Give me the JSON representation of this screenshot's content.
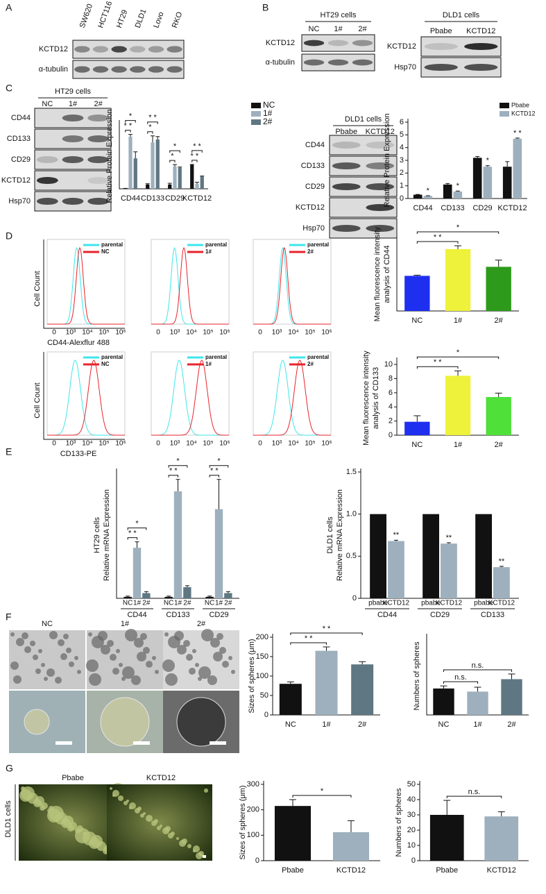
{
  "panel_labels": [
    "A",
    "B",
    "C",
    "D",
    "E",
    "F",
    "G"
  ],
  "blots": {
    "a": {
      "lanes": [
        "SW620",
        "HCT116",
        "HT29",
        "DLD1",
        "Lovo",
        "RKO"
      ],
      "rows": [
        "KCTD12",
        "α-tubulin"
      ]
    },
    "b1": {
      "title": "HT29 cells",
      "lanes": [
        "NC",
        "1#",
        "2#"
      ],
      "rows": [
        "KCTD12",
        "α-tubulin"
      ]
    },
    "b2": {
      "title": "DLD1   cells",
      "lanes": [
        "Pbabe",
        "KCTD12"
      ],
      "rows": [
        "KCTD12",
        "Hsp70"
      ]
    },
    "c1": {
      "title": "HT29 cells",
      "lanes": [
        "NC",
        "1#",
        "2#"
      ],
      "rows": [
        "CD44",
        "CD133",
        "CD29",
        "KCTD12",
        "Hsp70"
      ]
    },
    "c2": {
      "title": "DLD1 cells",
      "lanes": [
        "Pbabe",
        "KCTD12"
      ],
      "rows": [
        "CD44",
        "CD133",
        "CD29",
        "KCTD12",
        "Hsp70"
      ]
    }
  },
  "flow": {
    "ylabel": "Cell Count",
    "xticks": [
      "0",
      "10³",
      "10⁴",
      "10⁵",
      "10⁶"
    ],
    "rows": [
      {
        "xlabel": "CD44-Alexflur 488",
        "plots": [
          [
            "parental",
            "NC"
          ],
          [
            "parental",
            "1#"
          ],
          [
            "parental",
            "2#"
          ]
        ]
      },
      {
        "xlabel": "CD133-PE",
        "plots": [
          [
            "parental",
            "NC"
          ],
          [
            "parental",
            "1#"
          ],
          [
            "parental",
            "2#"
          ]
        ]
      }
    ]
  },
  "spheres": {
    "f": {
      "labels": [
        "NC",
        "1#",
        "2#"
      ]
    },
    "g": {
      "labels": [
        "Pbabe",
        "KCTD12"
      ],
      "side": "DLD1 cells"
    }
  },
  "chart_data": [
    {
      "type": "bar",
      "ylabel": [
        "Relative Protein Expression"
      ],
      "categories": [
        "CD44",
        "CD133",
        "CD29",
        "KCTD12"
      ],
      "series": [
        {
          "name": "NC",
          "color": "#111111",
          "values": [
            0.02,
            0.3,
            0.3,
            1.65
          ],
          "errors": [
            0.01,
            0.05,
            0.08,
            0.03
          ]
        },
        {
          "name": "1#",
          "color": "#9eb0bd",
          "values": [
            3.6,
            3.2,
            1.55,
            0.35
          ],
          "errors": [
            0.15,
            0.45,
            0.12,
            0.1
          ]
        },
        {
          "name": "2#",
          "color": "#5f7782",
          "values": [
            2.1,
            3.4,
            1.45,
            0.85
          ],
          "errors": [
            0.45,
            0.2,
            0.05,
            0.03
          ]
        }
      ],
      "ylim": [
        0,
        4.5
      ],
      "legend": "right",
      "annotations": [
        {
          "category": 0,
          "from": 0,
          "to": 1,
          "label": "* *"
        },
        {
          "category": 0,
          "from": 0,
          "to": 2,
          "label": "*"
        },
        {
          "category": 1,
          "from": 0,
          "to": 1,
          "label": "*"
        },
        {
          "category": 1,
          "from": 0,
          "to": 2,
          "label": "* *"
        },
        {
          "category": 2,
          "from": 0,
          "to": 1,
          "label": "*"
        },
        {
          "category": 2,
          "from": 0,
          "to": 2,
          "label": "*"
        },
        {
          "category": 3,
          "from": 0,
          "to": 1,
          "label": "* *"
        },
        {
          "category": 3,
          "from": 0,
          "to": 2,
          "label": "* *"
        }
      ]
    },
    {
      "type": "bar",
      "ylabel": [
        "Relative Protein Expression"
      ],
      "categories": [
        "CD44",
        "CD133",
        "CD29",
        "KCTD12"
      ],
      "series": [
        {
          "name": "Pbabe",
          "color": "#111111",
          "values": [
            0.3,
            1.1,
            3.2,
            2.5
          ],
          "errors": [
            0.02,
            0.08,
            0.1,
            0.4
          ]
        },
        {
          "name": "KCTD12",
          "color": "#9eb0bd",
          "values": [
            0.2,
            0.55,
            2.5,
            4.7
          ],
          "errors": [
            0.02,
            0.04,
            0.08,
            0.05
          ]
        }
      ],
      "ylim": [
        0,
        6
      ],
      "yticks": [
        0,
        1,
        2,
        3,
        4,
        5,
        6
      ],
      "legend": "top-right",
      "annotations": [
        {
          "category": 0,
          "series": 1,
          "label": "*"
        },
        {
          "category": 1,
          "series": 1,
          "label": "*"
        },
        {
          "category": 2,
          "series": 1,
          "label": "*"
        },
        {
          "category": 3,
          "series": 1,
          "label": "* *"
        }
      ]
    },
    {
      "type": "bar",
      "ylabel": [
        "Mean  fluorescence  intensity",
        "analysis of CD44"
      ],
      "categories": [
        "NC",
        "1#",
        "2#"
      ],
      "values": [
        1.05,
        1.85,
        1.32
      ],
      "errors": [
        0.02,
        0.1,
        0.2
      ],
      "colors": [
        "#1f2ff0",
        "#eef23a",
        "#2e9a1c"
      ],
      "ylim": [
        0,
        2.2
      ],
      "annotations": [
        {
          "from": 0,
          "to": 1,
          "label": "* *"
        },
        {
          "from": 0,
          "to": 2,
          "label": "*"
        }
      ]
    },
    {
      "type": "bar",
      "ylabel": [
        "Mean  fluorescence  intensity",
        "analysis of CD133"
      ],
      "categories": [
        "NC",
        "1#",
        "2#"
      ],
      "values": [
        1.9,
        8.4,
        5.4
      ],
      "errors": [
        0.85,
        0.7,
        0.55
      ],
      "colors": [
        "#1f2ff0",
        "#eef23a",
        "#4fe03a"
      ],
      "ylim": [
        0,
        10.5
      ],
      "yticks": [
        0,
        2,
        4,
        6,
        8,
        10
      ],
      "annotations": [
        {
          "from": 0,
          "to": 1,
          "label": "* *"
        },
        {
          "from": 0,
          "to": 2,
          "label": "*"
        }
      ]
    },
    {
      "type": "bar",
      "ylabel": [
        "HT29 cells",
        "Relative mRNA  Expression"
      ],
      "categories": [
        "CD44",
        "CD133",
        "CD29"
      ],
      "series": [
        {
          "name": "NC",
          "color": "#111111",
          "values": [
            1,
            1,
            1
          ],
          "errors": [
            0.5,
            0.5,
            0.5
          ]
        },
        {
          "name": "1#",
          "color": "#9eb0bd",
          "values": [
            34,
            72,
            60
          ],
          "errors": [
            4,
            8,
            20
          ]
        },
        {
          "name": "2#",
          "color": "#5f7782",
          "values": [
            3.5,
            7.5,
            3.5
          ],
          "errors": [
            1,
            1,
            1
          ]
        }
      ],
      "ylim": [
        0,
        85
      ],
      "legend": "under",
      "annotations": [
        {
          "category": 0,
          "from": 0,
          "to": 1,
          "label": "* *"
        },
        {
          "category": 0,
          "from": 0,
          "to": 2,
          "label": "*"
        },
        {
          "category": 1,
          "from": 0,
          "to": 1,
          "label": "* *"
        },
        {
          "category": 1,
          "from": 0,
          "to": 2,
          "label": "*"
        },
        {
          "category": 2,
          "from": 0,
          "to": 1,
          "label": "* *"
        },
        {
          "category": 2,
          "from": 0,
          "to": 2,
          "label": "*"
        }
      ]
    },
    {
      "type": "bar",
      "ylabel": [
        "DLD1 cells",
        "Relative mRNA  Expression"
      ],
      "categories": [
        "CD44",
        "CD29",
        "CD133"
      ],
      "series": [
        {
          "name": "pbabe",
          "color": "#111111",
          "values": [
            1,
            1,
            1
          ]
        },
        {
          "name": "KCTD12",
          "color": "#9eb0bd",
          "values": [
            0.68,
            0.65,
            0.37
          ],
          "errors": [
            0.01,
            0.01,
            0.01
          ]
        }
      ],
      "ylim": [
        0,
        1.5
      ],
      "yticks": [
        0,
        {
          "value": 0.5,
          "label": "0.5"
        },
        {
          "value": 1,
          "label": "1.0"
        },
        {
          "value": 1.5,
          "label": "1.5"
        }
      ],
      "legend": "under",
      "annotations": [
        {
          "category": 0,
          "series": 1,
          "label": "**"
        },
        {
          "category": 1,
          "series": 1,
          "label": "**"
        },
        {
          "category": 2,
          "series": 1,
          "label": "**"
        }
      ]
    },
    {
      "type": "bar",
      "ylabel": [
        "Sizes of spheres (μm)"
      ],
      "categories": [
        "NC",
        "1#",
        "2#"
      ],
      "values": [
        80,
        165,
        130
      ],
      "errors": [
        5,
        10,
        7
      ],
      "colors": [
        "#111111",
        "#9eb0bd",
        "#5f7782"
      ],
      "ylim": [
        0,
        200
      ],
      "yticks": [
        0,
        50,
        100,
        150,
        200
      ],
      "annotations": [
        {
          "from": 0,
          "to": 1,
          "label": "* *"
        },
        {
          "from": 0,
          "to": 2,
          "label": "* *"
        }
      ]
    },
    {
      "type": "bar",
      "ylabel": [
        "Numbers of spheres"
      ],
      "categories": [
        "NC",
        "1#",
        "2#"
      ],
      "values": [
        102,
        90,
        138
      ],
      "errors": [
        10,
        17,
        20
      ],
      "colors": [
        "#111111",
        "#9eb0bd",
        "#5f7782"
      ],
      "ylim": [
        0,
        300
      ],
      "annotations": [
        {
          "from": 0,
          "to": 1,
          "label": "n.s."
        },
        {
          "from": 0,
          "to": 2,
          "label": "n.s."
        }
      ]
    },
    {
      "type": "bar",
      "ylabel": [
        "Sizes of spheres (μm)"
      ],
      "categories": [
        "Pbabe",
        "KCTD12"
      ],
      "values": [
        215,
        112
      ],
      "errors": [
        25,
        45
      ],
      "colors": [
        "#111111",
        "#9eb0bd"
      ],
      "ylim": [
        0,
        300
      ],
      "yticks": [
        0,
        100,
        200,
        300
      ],
      "annotations": [
        {
          "from": 0,
          "to": 1,
          "label": "*"
        }
      ]
    },
    {
      "type": "bar",
      "ylabel": [
        "Numbers of spheres"
      ],
      "categories": [
        "Pbabe",
        "KCTD12"
      ],
      "values": [
        30,
        29
      ],
      "errors": [
        9.5,
        3
      ],
      "colors": [
        "#111111",
        "#9eb0bd"
      ],
      "ylim": [
        0,
        50
      ],
      "yticks": [
        0,
        10,
        20,
        30,
        40,
        50
      ],
      "annotations": [
        {
          "from": 0,
          "to": 1,
          "label": "n.s."
        }
      ]
    }
  ]
}
